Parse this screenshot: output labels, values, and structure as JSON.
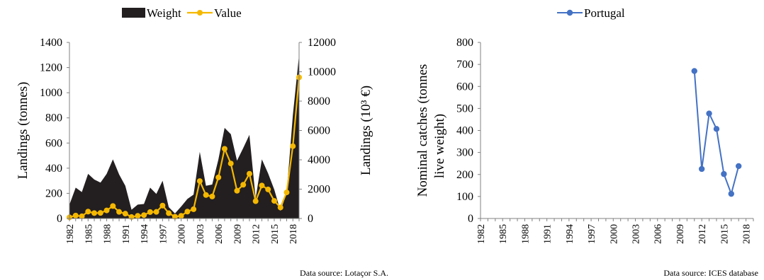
{
  "chart_data": [
    {
      "type": "area",
      "legend": [
        {
          "name": "Weight",
          "kind": "area",
          "color": "#231f20"
        },
        {
          "name": "Value",
          "kind": "line-marker",
          "color": "#f5b800"
        }
      ],
      "legend_position": "top",
      "ylabel": "Landings (tonnes)",
      "y2label": "Landings (10³ €)",
      "ylim": [
        0,
        1400
      ],
      "y2lim": [
        0,
        12000
      ],
      "y_ticks": [
        "0",
        "200",
        "400",
        "600",
        "800",
        "1000",
        "1200",
        "1400"
      ],
      "y2_ticks": [
        "0",
        "2000",
        "4000",
        "6000",
        "8000",
        "10000",
        "12000"
      ],
      "x_ticks": [
        "1982",
        "1985",
        "1988",
        "1991",
        "1994",
        "1997",
        "2000",
        "2003",
        "2006",
        "2009",
        "2012",
        "2015",
        "2018"
      ],
      "x": [
        1982,
        1983,
        1984,
        1985,
        1986,
        1987,
        1988,
        1989,
        1990,
        1991,
        1992,
        1993,
        1994,
        1995,
        1996,
        1997,
        1998,
        1999,
        2000,
        2001,
        2002,
        2003,
        2004,
        2005,
        2006,
        2007,
        2008,
        2009,
        2010,
        2011,
        2012,
        2013,
        2014,
        2015,
        2016,
        2017,
        2018,
        2019
      ],
      "series": [
        {
          "name": "Weight",
          "axis": "left",
          "color": "#231f20",
          "values": [
            110,
            245,
            210,
            355,
            310,
            285,
            355,
            470,
            350,
            260,
            70,
            110,
            115,
            245,
            195,
            300,
            90,
            40,
            95,
            155,
            190,
            530,
            260,
            270,
            470,
            720,
            670,
            460,
            560,
            665,
            160,
            470,
            360,
            230,
            60,
            200,
            820,
            1300
          ]
        },
        {
          "name": "Value",
          "axis": "right",
          "color": "#f5b800",
          "values": [
            80,
            200,
            150,
            470,
            370,
            380,
            550,
            850,
            450,
            330,
            100,
            180,
            230,
            440,
            450,
            880,
            360,
            120,
            180,
            470,
            630,
            2550,
            1600,
            1500,
            2800,
            4750,
            3750,
            1890,
            2300,
            3050,
            1180,
            2250,
            1980,
            1200,
            750,
            1780,
            4930,
            9620
          ]
        }
      ],
      "grid": false,
      "source_note": "Data source: Lotaçor S.A."
    },
    {
      "type": "line",
      "legend": [
        {
          "name": "Portugal",
          "kind": "line-marker",
          "color": "#4472c4"
        }
      ],
      "legend_position": "top",
      "ylabel": "Nominal catches (tonnes live weight)",
      "ylim": [
        0,
        800
      ],
      "y_ticks": [
        "0",
        "100",
        "200",
        "300",
        "400",
        "500",
        "600",
        "700",
        "800"
      ],
      "x_ticks": [
        "1982",
        "1985",
        "1988",
        "1991",
        "1994",
        "1997",
        "2000",
        "2003",
        "2006",
        "2009",
        "2012",
        "2015",
        "2018"
      ],
      "xlim": [
        1982,
        2019
      ],
      "series": [
        {
          "name": "Portugal",
          "color": "#4472c4",
          "x": [
            2011,
            2012,
            2013,
            2014,
            2015,
            2016,
            2017
          ],
          "values": [
            670,
            225,
            477,
            407,
            202,
            112,
            238
          ]
        }
      ],
      "grid": false,
      "source_note": "Data source: ICES database"
    }
  ]
}
